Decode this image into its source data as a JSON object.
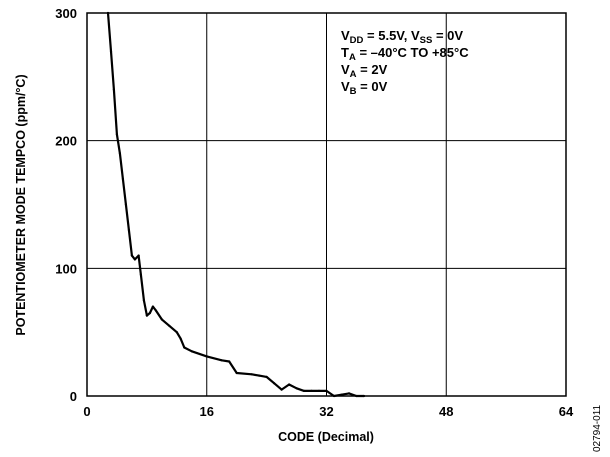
{
  "chart_data": {
    "type": "line",
    "xlabel": "CODE (Decimal)",
    "ylabel": "POTENTIOMETER MODE TEMPCO (ppm/°C)",
    "xlim": [
      0,
      64
    ],
    "ylim": [
      0,
      300
    ],
    "x_ticks": [
      "0",
      "16",
      "32",
      "48",
      "64"
    ],
    "y_ticks": [
      "0",
      "100",
      "200",
      "300"
    ],
    "grid": true,
    "annotation_lines": [
      {
        "parts": [
          {
            "t": "V"
          },
          {
            "t": "DD",
            "sub": true
          },
          {
            "t": " = 5.5V, V"
          },
          {
            "t": "SS",
            "sub": true
          },
          {
            "t": " = 0V"
          }
        ]
      },
      {
        "parts": [
          {
            "t": "T"
          },
          {
            "t": "A",
            "sub": true
          },
          {
            "t": " = –40°C TO +85°C"
          }
        ]
      },
      {
        "parts": [
          {
            "t": "V"
          },
          {
            "t": "A",
            "sub": true
          },
          {
            "t": " = 2V"
          }
        ]
      },
      {
        "parts": [
          {
            "t": "V"
          },
          {
            "t": "B",
            "sub": true
          },
          {
            "t": " = 0V"
          }
        ]
      }
    ],
    "series": [
      {
        "x": [
          2.8,
          3.2,
          3.6,
          4.0,
          4.4,
          4.8,
          5.2,
          5.6,
          6.0,
          6.4,
          6.9,
          7.2,
          7.6,
          8.0,
          8.4,
          8.8,
          9.2,
          10,
          11,
          12,
          12.5,
          13,
          14,
          16,
          18,
          19,
          20,
          22,
          23,
          24,
          25,
          26,
          27,
          28,
          29,
          30,
          31,
          32,
          33,
          34,
          35,
          36,
          37
        ],
        "y": [
          300,
          270,
          240,
          205,
          190,
          170,
          150,
          130,
          110,
          107,
          110,
          95,
          75,
          63,
          65,
          70,
          67,
          60,
          55,
          50,
          45,
          38,
          35,
          31,
          28,
          27,
          18,
          17,
          16,
          15,
          10,
          5,
          9,
          6,
          4,
          4,
          4,
          4,
          0,
          1,
          2,
          0,
          0
        ]
      }
    ]
  },
  "figure_id": "02794-011"
}
